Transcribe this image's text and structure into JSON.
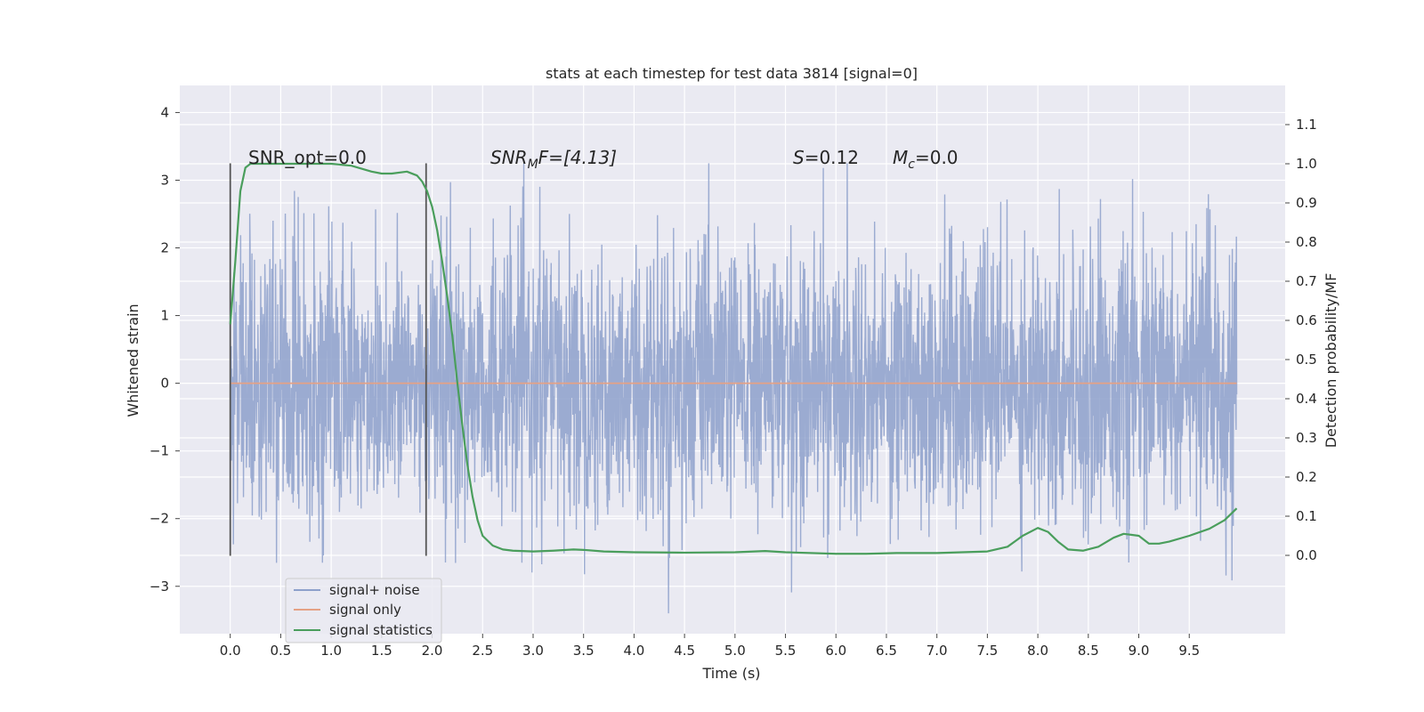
{
  "chart_data": {
    "type": "line",
    "title": "stats at each timestep for test data 3814 [signal=0]",
    "xlabel": "Time (s)",
    "ylabel": "Whitened strain",
    "y2label": "Detection probability/MF",
    "xlim": [
      -0.5,
      10.45
    ],
    "ylim": [
      -3.7,
      4.4
    ],
    "y2lim": [
      -0.2,
      1.2
    ],
    "x_ticks": [
      "0.0",
      "0.5",
      "1.0",
      "1.5",
      "2.0",
      "2.5",
      "3.0",
      "3.5",
      "4.0",
      "4.5",
      "5.0",
      "5.5",
      "6.0",
      "6.5",
      "7.0",
      "7.5",
      "8.0",
      "8.5",
      "9.0",
      "9.5"
    ],
    "y_ticks": [
      "4",
      "3",
      "2",
      "1",
      "0",
      "−1",
      "−2",
      "−3"
    ],
    "y2_ticks": [
      "1.1",
      "1.0",
      "0.9",
      "0.8",
      "0.7",
      "0.6",
      "0.5",
      "0.4",
      "0.3",
      "0.2",
      "0.1",
      "0.0"
    ],
    "grid": true,
    "legend_position": "lower-left",
    "colors": {
      "background": "#eaeaf2",
      "noise": "#8da0cb",
      "signal_only": "#e5a185",
      "statistics": "#4a9e5c",
      "vlines": "#555555"
    },
    "annotations": {
      "snr_opt": "SNR_opt=0.0",
      "snr_mf_italic": "SNR",
      "snr_mf_sub": "M",
      "snr_mf_rest": "F=[4.13]",
      "s_italic": "S",
      "s_rest": "=0.12",
      "mc_italic": "M",
      "mc_sub": "c",
      "mc_rest": "=0.0"
    },
    "vertical_lines_x": [
      0.0,
      1.94
    ],
    "series": [
      {
        "name": "signal+ noise",
        "kind": "noise_band",
        "x_range": [
          0.0,
          9.97
        ],
        "sigma": 1.0,
        "seed": 3814
      },
      {
        "name": "signal only",
        "kind": "flat",
        "x": [
          0.0,
          9.97
        ],
        "values": [
          0.0,
          0.0
        ]
      },
      {
        "name": "signal statistics",
        "kind": "line",
        "axis": "right",
        "x": [
          0.0,
          0.05,
          0.1,
          0.15,
          0.2,
          0.3,
          0.5,
          0.8,
          1.0,
          1.2,
          1.4,
          1.5,
          1.6,
          1.75,
          1.85,
          1.9,
          1.95,
          2.0,
          2.05,
          2.1,
          2.15,
          2.2,
          2.25,
          2.3,
          2.35,
          2.4,
          2.45,
          2.5,
          2.6,
          2.7,
          2.8,
          3.0,
          3.2,
          3.4,
          3.5,
          3.7,
          4.0,
          4.5,
          5.0,
          5.3,
          5.5,
          6.0,
          6.3,
          6.6,
          7.0,
          7.5,
          7.7,
          7.85,
          8.0,
          8.1,
          8.2,
          8.3,
          8.45,
          8.6,
          8.75,
          8.85,
          9.0,
          9.1,
          9.2,
          9.3,
          9.5,
          9.7,
          9.85,
          9.97
        ],
        "values": [
          0.59,
          0.75,
          0.93,
          0.99,
          1.0,
          1.0,
          1.0,
          1.0,
          1.0,
          0.995,
          0.98,
          0.975,
          0.975,
          0.98,
          0.97,
          0.955,
          0.93,
          0.89,
          0.83,
          0.75,
          0.66,
          0.56,
          0.44,
          0.33,
          0.23,
          0.15,
          0.09,
          0.05,
          0.025,
          0.015,
          0.012,
          0.01,
          0.012,
          0.015,
          0.014,
          0.01,
          0.008,
          0.007,
          0.008,
          0.011,
          0.008,
          0.004,
          0.004,
          0.006,
          0.006,
          0.01,
          0.022,
          0.05,
          0.07,
          0.06,
          0.035,
          0.015,
          0.012,
          0.022,
          0.045,
          0.055,
          0.05,
          0.03,
          0.03,
          0.035,
          0.05,
          0.068,
          0.09,
          0.12
        ]
      }
    ]
  }
}
